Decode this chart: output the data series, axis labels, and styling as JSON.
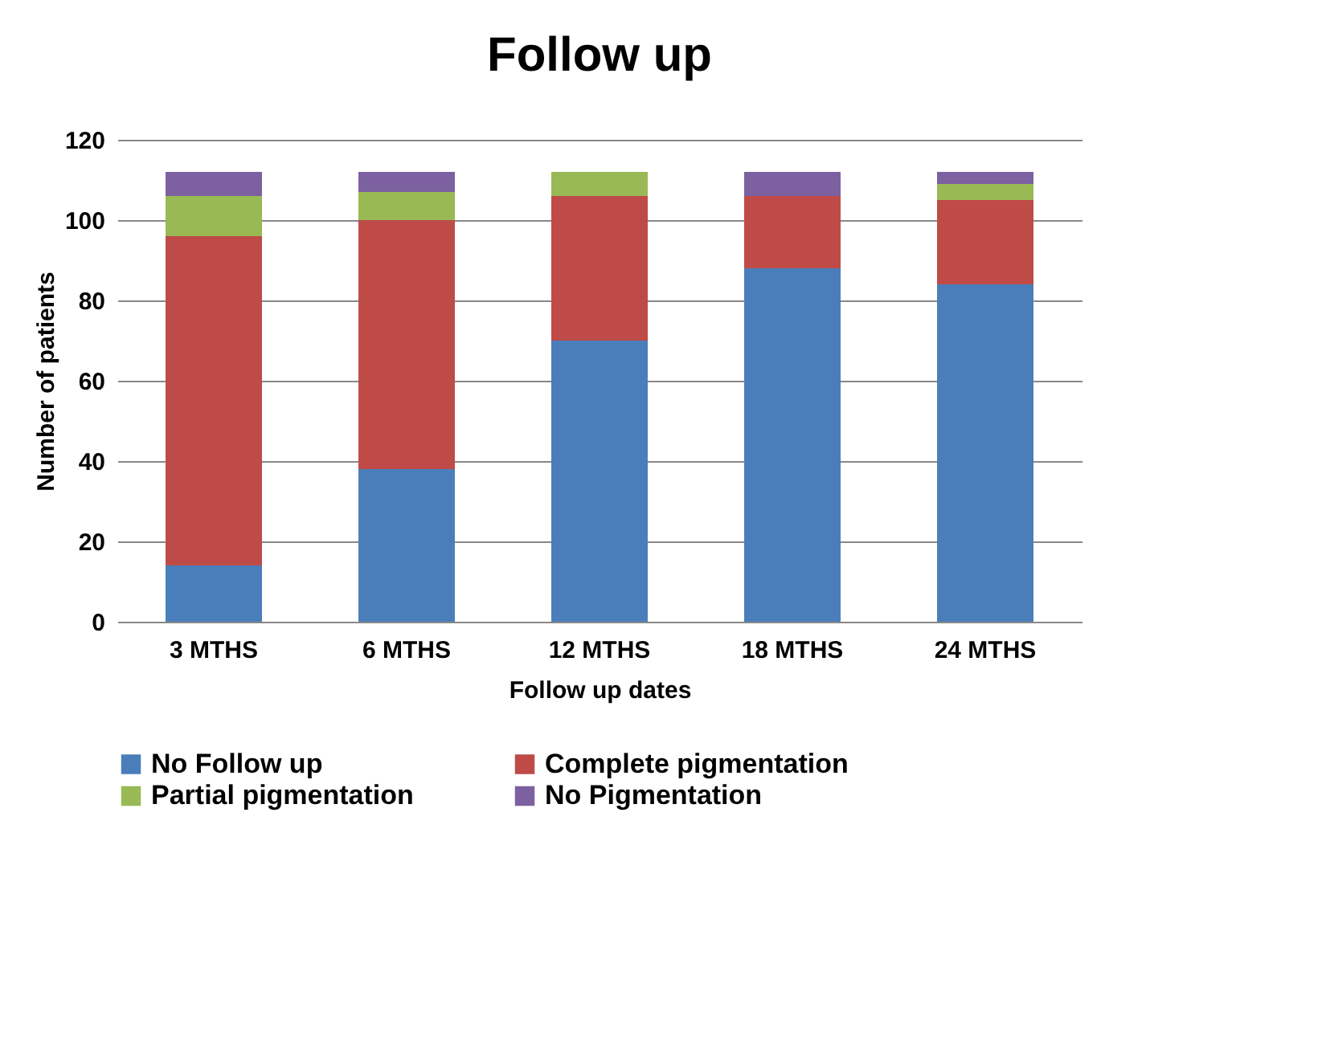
{
  "chart_data": {
    "type": "bar",
    "title": "Follow up",
    "xlabel": "Follow up dates",
    "ylabel": "Number of patients",
    "categories": [
      "3 MTHS",
      "6 MTHS",
      "12 MTHS",
      "18 MTHS",
      "24 MTHS"
    ],
    "stacked": true,
    "series": [
      {
        "name": "No Follow up",
        "color": "#4a7ebb",
        "values": [
          14,
          38,
          70,
          88,
          84
        ]
      },
      {
        "name": "Complete pigmentation",
        "color": "#be4b48",
        "values": [
          82,
          62,
          36,
          18,
          21
        ]
      },
      {
        "name": "Partial pigmentation",
        "color": "#98b954",
        "values": [
          10,
          7,
          6,
          0,
          4
        ]
      },
      {
        "name": "No Pigmentation",
        "color": "#7d60a0",
        "values": [
          6,
          5,
          0,
          6,
          3
        ]
      }
    ],
    "ylim": [
      0,
      120
    ],
    "yticks": [
      0,
      20,
      40,
      60,
      80,
      100,
      120
    ],
    "grid": "y",
    "legend": "bottom"
  }
}
